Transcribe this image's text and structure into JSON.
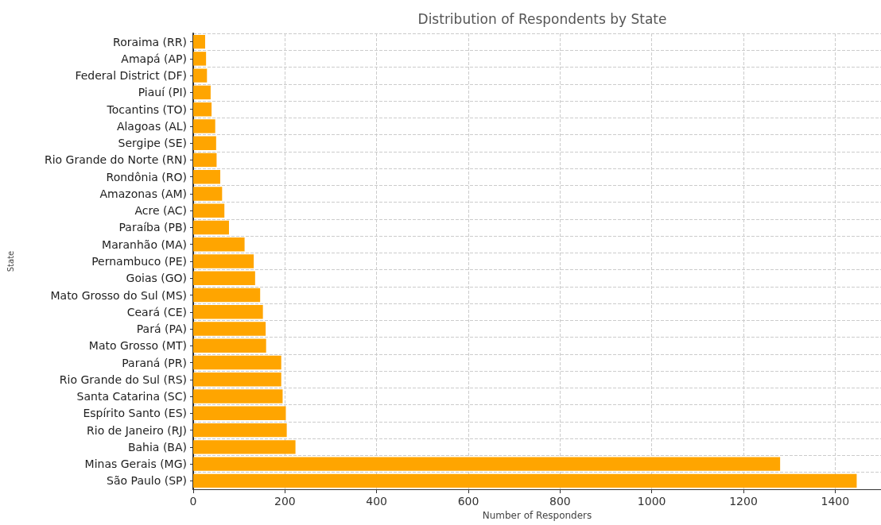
{
  "chart_data": {
    "type": "bar",
    "orientation": "horizontal",
    "title": "Distribution of Respondents by State",
    "xlabel": "Number of Responders",
    "ylabel": "State",
    "categories": [
      "Roraima (RR)",
      "Amapá (AP)",
      "Federal District (DF)",
      "Piauí (PI)",
      "Tocantins (TO)",
      "Alagoas (AL)",
      "Sergipe (SE)",
      "Rio Grande do Norte (RN)",
      "Rondônia (RO)",
      "Amazonas (AM)",
      "Acre (AC)",
      "Paraíba (PB)",
      "Maranhão (MA)",
      "Pernambuco (PE)",
      "Goias (GO)",
      "Mato Grosso do Sul (MS)",
      "Ceará (CE)",
      "Pará (PA)",
      "Mato Grosso (MT)",
      "Paraná (PR)",
      "Rio Grande do Sul (RS)",
      "Santa Catarina (SC)",
      "Espírito Santo (ES)",
      "Rio de Janeiro (RJ)",
      "Bahia (BA)",
      "Minas Gerais (MG)",
      "São Paulo (SP)"
    ],
    "values": [
      26,
      28,
      30,
      38,
      40,
      48,
      50,
      51,
      59,
      63,
      68,
      78,
      112,
      132,
      135,
      146,
      152,
      158,
      159,
      192,
      192,
      195,
      202,
      204,
      223,
      1280,
      1447
    ],
    "color": "#ffa500",
    "xlim": [
      0,
      1500
    ],
    "xticks": [
      0,
      200,
      400,
      600,
      800,
      1000,
      1200,
      1400
    ],
    "grid": true,
    "line_style": "dashed"
  }
}
